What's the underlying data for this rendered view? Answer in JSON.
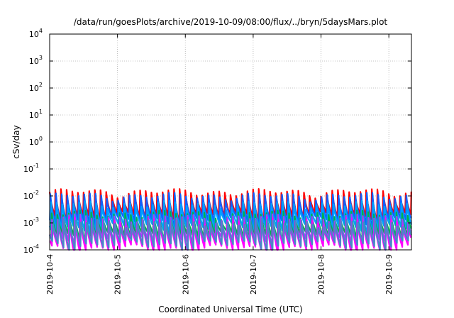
{
  "chart_data": {
    "type": "line",
    "title": "/data/run/goesPlots/archive/2019-10-09/08:00/flux/../bryn/5daysMars.plot",
    "xlabel": "Coordinated Universal Time (UTC)",
    "ylabel": "cSv/day",
    "yscale": "log",
    "ylim": [
      0.0001,
      10000
    ],
    "y_ticks": [
      {
        "mant": "10",
        "exp": "4",
        "value": 10000
      },
      {
        "mant": "10",
        "exp": "3",
        "value": 1000
      },
      {
        "mant": "10",
        "exp": "2",
        "value": 100
      },
      {
        "mant": "10",
        "exp": "1",
        "value": 10
      },
      {
        "mant": "10",
        "exp": "0",
        "value": 1
      },
      {
        "mant": "10",
        "exp": "-1",
        "value": 0.1
      },
      {
        "mant": "10",
        "exp": "-2",
        "value": 0.01
      },
      {
        "mant": "10",
        "exp": "-3",
        "value": 0.001
      },
      {
        "mant": "10",
        "exp": "-4",
        "value": 0.0001
      }
    ],
    "x_ticks": [
      {
        "label": "2019-10-4",
        "day": 0
      },
      {
        "label": "2019-10-5",
        "day": 1
      },
      {
        "label": "2019-10-6",
        "day": 2
      },
      {
        "label": "2019-10-7",
        "day": 3
      },
      {
        "label": "2019-10-8",
        "day": 4
      },
      {
        "label": "2019-10-9",
        "day": 5
      }
    ],
    "x_range_days": [
      0,
      5.333
    ],
    "grid": true,
    "legend": "none",
    "sawtooth_period_days": 0.0833,
    "series": [
      {
        "color": "#ff0000",
        "peak": 0.014,
        "trough": 0.0018,
        "phase": 0.0
      },
      {
        "color": "#1060ff",
        "peak": 0.01,
        "trough": 0.0012,
        "phase": 0.01
      },
      {
        "color": "#00a0ff",
        "peak": 0.005,
        "trough": 0.0007,
        "phase": 0.02
      },
      {
        "color": "#00b050",
        "peak": 0.0022,
        "trough": 0.00035,
        "phase": 0.03
      },
      {
        "color": "#a040ff",
        "peak": 0.0016,
        "trough": 0.00022,
        "phase": 0.035
      },
      {
        "color": "#ff00ff",
        "peak": 0.0012,
        "trough": 0.00011,
        "phase": 0.04
      },
      {
        "color": "#4a86c8",
        "peak": 0.0011,
        "trough": 0.00016,
        "phase": 0.045
      }
    ]
  }
}
